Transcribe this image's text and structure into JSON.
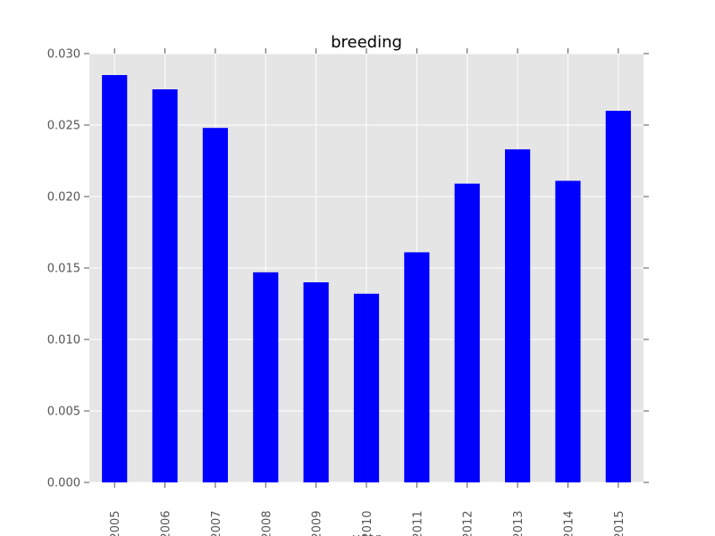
{
  "chart_data": {
    "type": "bar",
    "title": "breeding",
    "xlabel": "year",
    "ylabel": "",
    "categories": [
      "2005",
      "2006",
      "2007",
      "2008",
      "2009",
      "2010",
      "2011",
      "2012",
      "2013",
      "2014",
      "2015"
    ],
    "values": [
      0.0285,
      0.0275,
      0.0248,
      0.0147,
      0.014,
      0.0132,
      0.0161,
      0.0209,
      0.0233,
      0.0211,
      0.026
    ],
    "ylim": [
      0,
      0.03
    ],
    "yticks": [
      "0.000",
      "0.005",
      "0.010",
      "0.015",
      "0.020",
      "0.025",
      "0.030"
    ],
    "grid": true,
    "colors": {
      "bar": "#0000ff",
      "plot_background": "#e5e5e5",
      "grid": "#ffffff"
    }
  }
}
